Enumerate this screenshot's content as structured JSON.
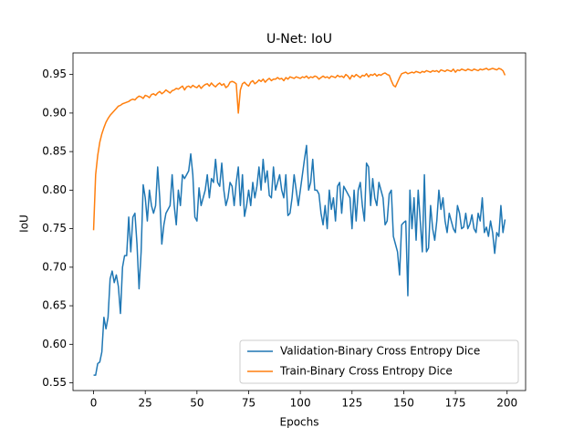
{
  "chart_data": {
    "type": "line",
    "title": "U-Net: IoU",
    "x_label": "Epochs",
    "y_label": "IoU",
    "x": [
      0,
      1,
      2,
      3,
      4,
      5,
      6,
      7,
      8,
      9,
      10,
      11,
      12,
      13,
      14,
      15,
      16,
      17,
      18,
      19,
      20,
      21,
      22,
      23,
      24,
      25,
      26,
      27,
      28,
      29,
      30,
      31,
      32,
      33,
      34,
      35,
      36,
      37,
      38,
      39,
      40,
      41,
      42,
      43,
      44,
      45,
      46,
      47,
      48,
      49,
      50,
      51,
      52,
      53,
      54,
      55,
      56,
      57,
      58,
      59,
      60,
      61,
      62,
      63,
      64,
      65,
      66,
      67,
      68,
      69,
      70,
      71,
      72,
      73,
      74,
      75,
      76,
      77,
      78,
      79,
      80,
      81,
      82,
      83,
      84,
      85,
      86,
      87,
      88,
      89,
      90,
      91,
      92,
      93,
      94,
      95,
      96,
      97,
      98,
      99,
      100,
      101,
      102,
      103,
      104,
      105,
      106,
      107,
      108,
      109,
      110,
      111,
      112,
      113,
      114,
      115,
      116,
      117,
      118,
      119,
      120,
      121,
      122,
      123,
      124,
      125,
      126,
      127,
      128,
      129,
      130,
      131,
      132,
      133,
      134,
      135,
      136,
      137,
      138,
      139,
      140,
      141,
      142,
      143,
      144,
      145,
      146,
      147,
      148,
      149,
      150,
      151,
      152,
      153,
      154,
      155,
      156,
      157,
      158,
      159,
      160,
      161,
      162,
      163,
      164,
      165,
      166,
      167,
      168,
      169,
      170,
      171,
      172,
      173,
      174,
      175,
      176,
      177,
      178,
      179,
      180,
      181,
      182,
      183,
      184,
      185,
      186,
      187,
      188,
      189,
      190,
      191,
      192,
      193,
      194,
      195,
      196,
      197,
      198,
      199
    ],
    "series": [
      {
        "name": "Validation-Binary Cross Entropy Dice",
        "color": "#1f77b4",
        "values": [
          0.56,
          0.56,
          0.575,
          0.577,
          0.59,
          0.635,
          0.62,
          0.635,
          0.685,
          0.695,
          0.68,
          0.69,
          0.675,
          0.64,
          0.7,
          0.715,
          0.715,
          0.765,
          0.72,
          0.765,
          0.77,
          0.73,
          0.672,
          0.72,
          0.807,
          0.79,
          0.76,
          0.8,
          0.78,
          0.77,
          0.78,
          0.83,
          0.79,
          0.73,
          0.755,
          0.77,
          0.775,
          0.78,
          0.82,
          0.78,
          0.755,
          0.8,
          0.78,
          0.82,
          0.815,
          0.82,
          0.825,
          0.847,
          0.82,
          0.765,
          0.76,
          0.803,
          0.78,
          0.79,
          0.8,
          0.82,
          0.79,
          0.815,
          0.81,
          0.84,
          0.81,
          0.805,
          0.835,
          0.8,
          0.78,
          0.79,
          0.81,
          0.805,
          0.78,
          0.81,
          0.83,
          0.78,
          0.82,
          0.766,
          0.78,
          0.8,
          0.78,
          0.81,
          0.79,
          0.805,
          0.83,
          0.8,
          0.84,
          0.81,
          0.825,
          0.793,
          0.79,
          0.83,
          0.8,
          0.81,
          0.82,
          0.8,
          0.79,
          0.82,
          0.767,
          0.77,
          0.79,
          0.82,
          0.8,
          0.78,
          0.8,
          0.82,
          0.84,
          0.858,
          0.8,
          0.81,
          0.84,
          0.8,
          0.8,
          0.795,
          0.77,
          0.755,
          0.78,
          0.75,
          0.8,
          0.775,
          0.79,
          0.76,
          0.805,
          0.81,
          0.77,
          0.805,
          0.8,
          0.795,
          0.79,
          0.75,
          0.8,
          0.76,
          0.8,
          0.81,
          0.78,
          0.76,
          0.835,
          0.83,
          0.78,
          0.815,
          0.79,
          0.78,
          0.81,
          0.8,
          0.79,
          0.755,
          0.76,
          0.795,
          0.8,
          0.74,
          0.73,
          0.72,
          0.69,
          0.755,
          0.758,
          0.76,
          0.663,
          0.8,
          0.75,
          0.79,
          0.735,
          0.8,
          0.76,
          0.72,
          0.82,
          0.72,
          0.725,
          0.78,
          0.75,
          0.735,
          0.76,
          0.8,
          0.775,
          0.79,
          0.76,
          0.745,
          0.77,
          0.76,
          0.75,
          0.745,
          0.78,
          0.77,
          0.75,
          0.752,
          0.77,
          0.75,
          0.756,
          0.768,
          0.75,
          0.745,
          0.77,
          0.76,
          0.79,
          0.745,
          0.752,
          0.74,
          0.76,
          0.745,
          0.718,
          0.745,
          0.74,
          0.78,
          0.745,
          0.762
        ]
      },
      {
        "name": "Train-Binary Cross Entropy Dice",
        "color": "#ff7f0e",
        "values": [
          0.748,
          0.82,
          0.845,
          0.862,
          0.873,
          0.881,
          0.888,
          0.893,
          0.897,
          0.9,
          0.903,
          0.906,
          0.909,
          0.91,
          0.912,
          0.913,
          0.914,
          0.915,
          0.917,
          0.918,
          0.917,
          0.92,
          0.922,
          0.921,
          0.919,
          0.923,
          0.922,
          0.92,
          0.924,
          0.925,
          0.923,
          0.926,
          0.928,
          0.925,
          0.927,
          0.93,
          0.928,
          0.926,
          0.929,
          0.93,
          0.932,
          0.931,
          0.933,
          0.935,
          0.93,
          0.934,
          0.935,
          0.933,
          0.936,
          0.934,
          0.933,
          0.936,
          0.932,
          0.935,
          0.937,
          0.938,
          0.935,
          0.939,
          0.936,
          0.934,
          0.937,
          0.939,
          0.936,
          0.938,
          0.933,
          0.935,
          0.94,
          0.941,
          0.94,
          0.938,
          0.9,
          0.93,
          0.938,
          0.94,
          0.937,
          0.935,
          0.94,
          0.942,
          0.938,
          0.94,
          0.943,
          0.941,
          0.944,
          0.94,
          0.943,
          0.945,
          0.942,
          0.944,
          0.944,
          0.946,
          0.944,
          0.945,
          0.942,
          0.946,
          0.944,
          0.947,
          0.946,
          0.945,
          0.947,
          0.946,
          0.945,
          0.947,
          0.946,
          0.948,
          0.945,
          0.947,
          0.946,
          0.948,
          0.947,
          0.944,
          0.946,
          0.948,
          0.946,
          0.947,
          0.945,
          0.948,
          0.947,
          0.946,
          0.949,
          0.947,
          0.948,
          0.946,
          0.95,
          0.948,
          0.944,
          0.949,
          0.947,
          0.95,
          0.948,
          0.946,
          0.949,
          0.948,
          0.951,
          0.947,
          0.95,
          0.949,
          0.951,
          0.948,
          0.95,
          0.949,
          0.951,
          0.952,
          0.95,
          0.949,
          0.942,
          0.936,
          0.934,
          0.94,
          0.946,
          0.951,
          0.952,
          0.953,
          0.951,
          0.952,
          0.953,
          0.952,
          0.954,
          0.953,
          0.952,
          0.954,
          0.953,
          0.955,
          0.954,
          0.953,
          0.955,
          0.954,
          0.955,
          0.953,
          0.956,
          0.955,
          0.954,
          0.956,
          0.955,
          0.954,
          0.957,
          0.953,
          0.956,
          0.955,
          0.957,
          0.956,
          0.955,
          0.957,
          0.956,
          0.955,
          0.957,
          0.956,
          0.955,
          0.957,
          0.956,
          0.957,
          0.958,
          0.956,
          0.957,
          0.958,
          0.957,
          0.956,
          0.958,
          0.957,
          0.955,
          0.949
        ]
      }
    ],
    "xlim": [
      -9.95,
      208.95
    ],
    "ylim": [
      0.54,
      0.978
    ],
    "xticks": [
      0,
      25,
      50,
      75,
      100,
      125,
      150,
      175,
      200
    ],
    "yticks": [
      0.55,
      {
        "value": 0.6,
        "label": "0.60"
      },
      0.65,
      {
        "value": 0.7,
        "label": "0.70"
      },
      0.75,
      {
        "value": 0.8,
        "label": "0.80"
      },
      0.85,
      {
        "value": 0.9,
        "label": "0.90"
      },
      0.95
    ],
    "legend": "lower right"
  }
}
